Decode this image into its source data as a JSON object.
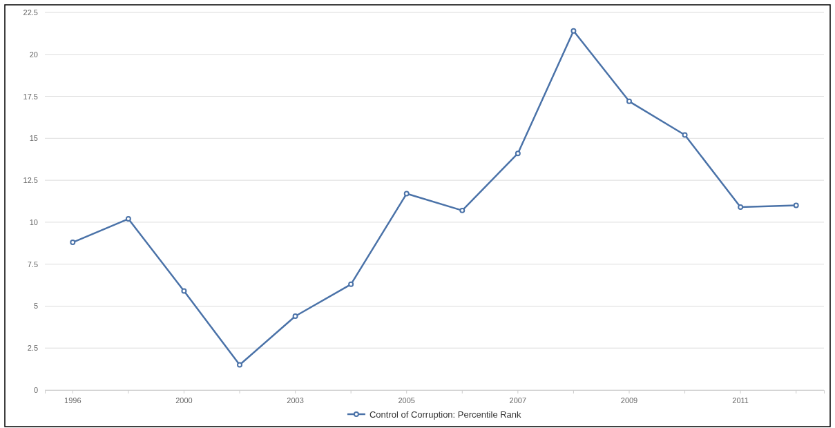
{
  "chart_data": {
    "type": "line",
    "categories": [
      "1996",
      null,
      "2000",
      null,
      "2003",
      null,
      "2005",
      null,
      "2007",
      null,
      "2009",
      null,
      "2011",
      null
    ],
    "series": [
      {
        "name": "Control of Corruption: Percentile Rank",
        "color": "#4a72a8",
        "values": [
          8.8,
          10.2,
          5.9,
          1.5,
          4.4,
          6.3,
          11.7,
          10.7,
          14.1,
          21.4,
          17.2,
          15.2,
          10.9,
          11.0
        ]
      }
    ],
    "ylim": [
      0,
      22.5
    ],
    "yticks": [
      0,
      2.5,
      5,
      7.5,
      10,
      12.5,
      15,
      17.5,
      20,
      22.5
    ],
    "grid": "y",
    "legend": "bottom",
    "marker": "circle",
    "line_style": "solid"
  }
}
